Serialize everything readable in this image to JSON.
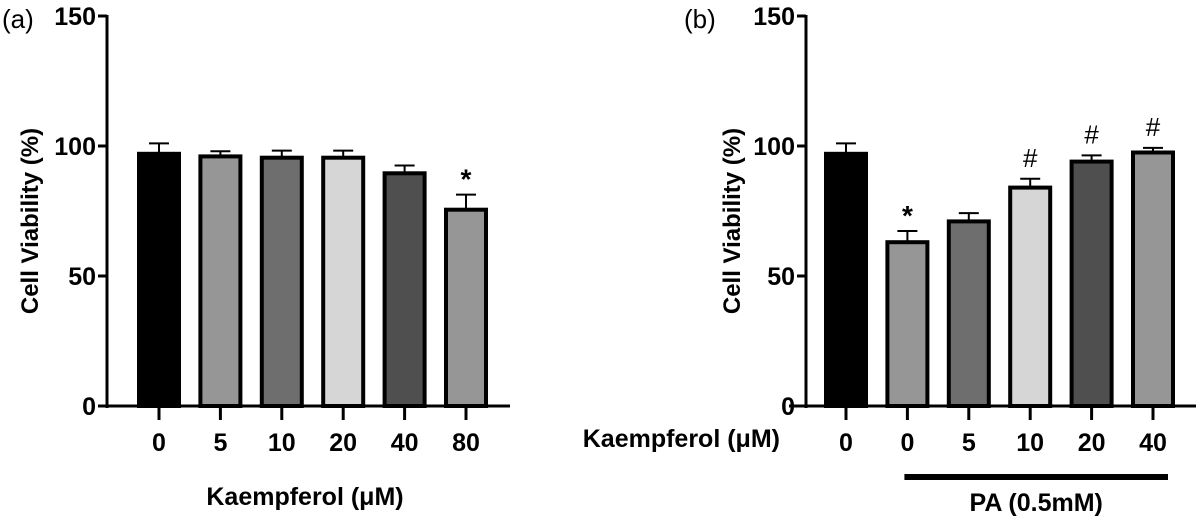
{
  "chart_data": [
    {
      "type": "bar",
      "panel_label": "(a)",
      "title": "",
      "ylabel": "Cell Viability (%)",
      "xlabel": "Kaempferol (μM)",
      "ylim": [
        0,
        150
      ],
      "yticks": [
        0,
        50,
        100,
        150
      ],
      "categories": [
        "0",
        "5",
        "10",
        "20",
        "40",
        "80"
      ],
      "values": [
        97,
        96,
        95.5,
        95.5,
        89.5,
        75.5
      ],
      "errors": [
        4,
        2,
        2.7,
        2.7,
        3,
        5.8
      ],
      "fills": [
        "#000000",
        "#969696",
        "#6e6e6e",
        "#d6d6d6",
        "#4f4f4f",
        "#969696"
      ],
      "annotations": [
        "",
        "",
        "",
        "",
        "",
        "*"
      ]
    },
    {
      "type": "bar",
      "panel_label": "(b)",
      "title": "",
      "ylabel": "Cell Viability (%)",
      "xlabel": "Kaempferol (μM)",
      "ylim": [
        0,
        150
      ],
      "yticks": [
        0,
        50,
        100,
        150
      ],
      "categories": [
        "0",
        "0",
        "5",
        "10",
        "20",
        "40"
      ],
      "values": [
        97,
        63,
        71,
        84,
        94,
        97.5
      ],
      "errors": [
        4,
        4.3,
        3.2,
        3.4,
        2.4,
        1.8
      ],
      "fills": [
        "#000000",
        "#969696",
        "#6e6e6e",
        "#d6d6d6",
        "#4f4f4f",
        "#969696"
      ],
      "annotations": [
        "",
        "*",
        "",
        "#",
        "#",
        "#"
      ],
      "group_bracket": {
        "label": "PA (0.5mM)",
        "from_index": 1,
        "to_index": 5
      }
    }
  ]
}
